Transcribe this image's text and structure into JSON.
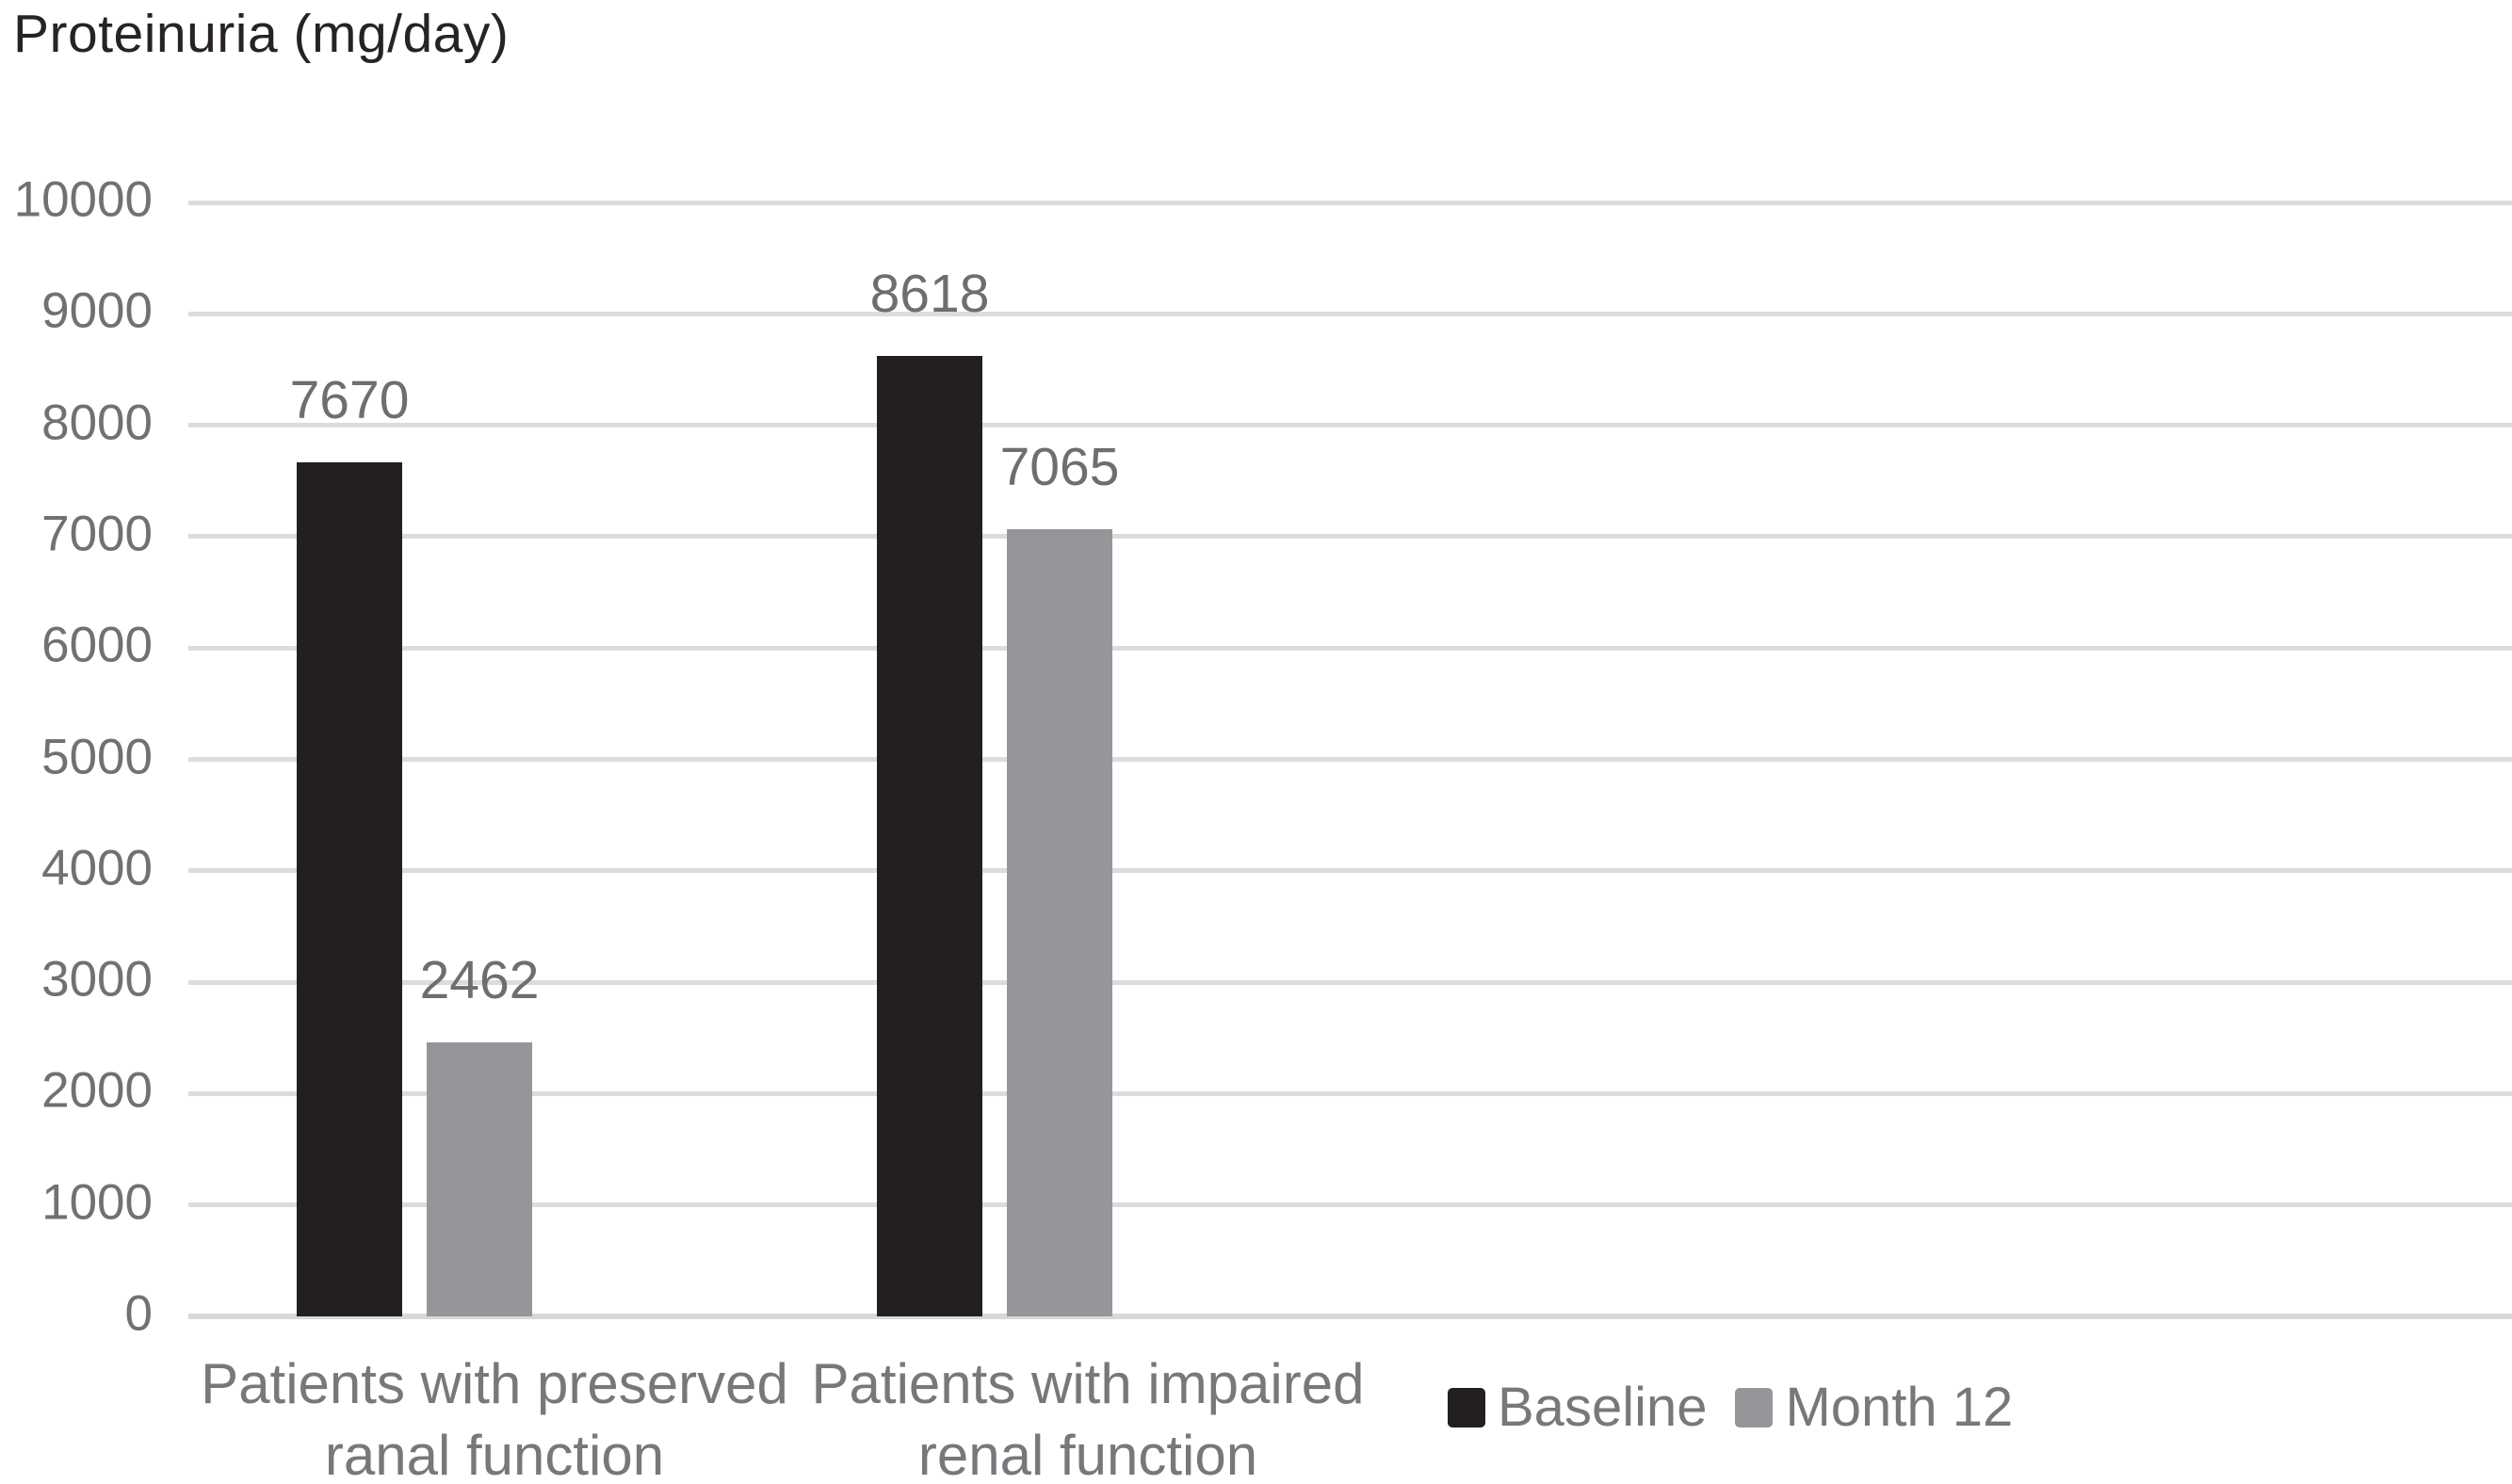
{
  "chart_data": {
    "type": "bar",
    "title": "Proteinuria (mg/day)",
    "categories": [
      "Patients with preserved\nranal function",
      "Patients with impaired\nrenal function"
    ],
    "series": [
      {
        "name": "Baseline",
        "color": "#231f20",
        "values": [
          7670,
          8618
        ]
      },
      {
        "name": "Month 12",
        "color": "#959699",
        "values": [
          2462,
          7065
        ]
      }
    ],
    "data_labels": [
      [
        "7670",
        "8618"
      ],
      [
        "2462",
        "7065"
      ]
    ],
    "xlabel": "",
    "ylabel": "",
    "ylim": [
      0,
      10000
    ],
    "yticks": [
      0,
      1000,
      2000,
      3000,
      4000,
      5000,
      6000,
      7000,
      8000,
      9000,
      10000
    ],
    "grid": true,
    "legend_position": "bottom-right",
    "legend": [
      "Baseline",
      "Month 12"
    ],
    "colors": {
      "baseline_bar": "#231f20",
      "month12_bar": "#959699",
      "gridline": "#dcdcdc",
      "axis_text": "#707175",
      "title_text": "#272324",
      "background": "#ffffff"
    }
  }
}
